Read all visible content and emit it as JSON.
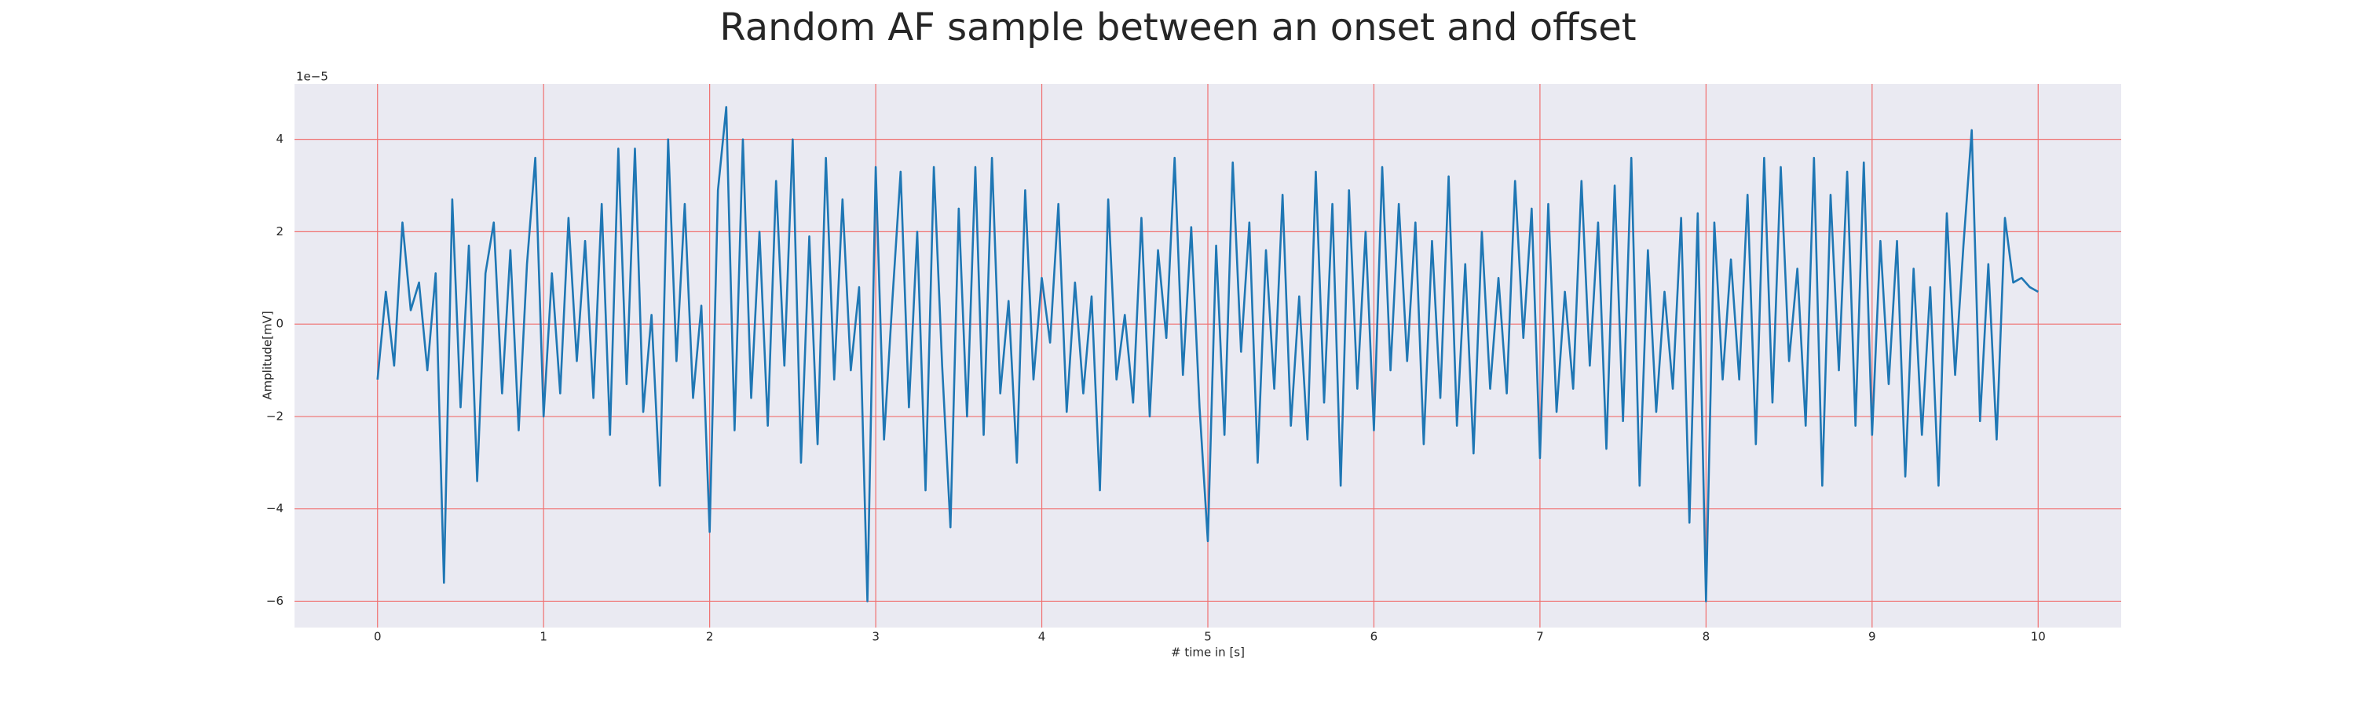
{
  "chart_data": {
    "type": "line",
    "title": "Random AF sample between an onset and offset",
    "xlabel": "# time in [s]",
    "ylabel": "Amplitude[mV]",
    "y_offset_label": "1e−5",
    "color": "#1f77b4",
    "grid": true,
    "xlim": [
      -0.5,
      10.5
    ],
    "ylim": [
      -6.57,
      5.2
    ],
    "xticks": [
      0,
      1,
      2,
      3,
      4,
      5,
      6,
      7,
      8,
      9,
      10
    ],
    "yticks": [
      {
        "value": -6,
        "label": "−6"
      },
      {
        "value": -4,
        "label": "−4"
      },
      {
        "value": -2,
        "label": "−2"
      },
      0,
      2,
      4
    ],
    "x": [
      0,
      0.05,
      0.1,
      0.15,
      0.2,
      0.25,
      0.3,
      0.35,
      0.4,
      0.45,
      0.5,
      0.55,
      0.6,
      0.65,
      0.7,
      0.75,
      0.8,
      0.85,
      0.9,
      0.95,
      1,
      1.05,
      1.1,
      1.15,
      1.2,
      1.25,
      1.3,
      1.35,
      1.4,
      1.45,
      1.5,
      1.55,
      1.6,
      1.65,
      1.7,
      1.75,
      1.8,
      1.85,
      1.9,
      1.95,
      2,
      2.05,
      2.1,
      2.15,
      2.2,
      2.25,
      2.3,
      2.35,
      2.4,
      2.45,
      2.5,
      2.55,
      2.6,
      2.65,
      2.7,
      2.75,
      2.8,
      2.85,
      2.9,
      2.95,
      3,
      3.05,
      3.1,
      3.15,
      3.2,
      3.25,
      3.3,
      3.35,
      3.4,
      3.45,
      3.5,
      3.55,
      3.6,
      3.65,
      3.7,
      3.75,
      3.8,
      3.85,
      3.9,
      3.95,
      4,
      4.05,
      4.1,
      4.15,
      4.2,
      4.25,
      4.3,
      4.35,
      4.4,
      4.45,
      4.5,
      4.55,
      4.6,
      4.65,
      4.7,
      4.75,
      4.8,
      4.85,
      4.9,
      4.95,
      5,
      5.05,
      5.1,
      5.15,
      5.2,
      5.25,
      5.3,
      5.35,
      5.4,
      5.45,
      5.5,
      5.55,
      5.6,
      5.65,
      5.7,
      5.75,
      5.8,
      5.85,
      5.9,
      5.95,
      6,
      6.05,
      6.1,
      6.15,
      6.2,
      6.25,
      6.3,
      6.35,
      6.4,
      6.45,
      6.5,
      6.55,
      6.6,
      6.65,
      6.7,
      6.75,
      6.8,
      6.85,
      6.9,
      6.95,
      7,
      7.05,
      7.1,
      7.15,
      7.2,
      7.25,
      7.3,
      7.35,
      7.4,
      7.45,
      7.5,
      7.55,
      7.6,
      7.65,
      7.7,
      7.75,
      7.8,
      7.85,
      7.9,
      7.95,
      8,
      8.05,
      8.1,
      8.15,
      8.2,
      8.25,
      8.3,
      8.35,
      8.4,
      8.45,
      8.5,
      8.55,
      8.6,
      8.65,
      8.7,
      8.75,
      8.8,
      8.85,
      8.9,
      8.95,
      9,
      9.05,
      9.1,
      9.15,
      9.2,
      9.25,
      9.3,
      9.35,
      9.4,
      9.45,
      9.5,
      9.55,
      9.6,
      9.65,
      9.7,
      9.75,
      9.8,
      9.85,
      9.9,
      9.95,
      10
    ],
    "values": [
      -1.2,
      0.7,
      -0.9,
      2.2,
      0.3,
      0.9,
      -1.0,
      1.1,
      -5.6,
      2.7,
      -1.8,
      1.7,
      -3.4,
      1.1,
      2.2,
      -1.5,
      1.6,
      -2.3,
      1.3,
      3.6,
      -2.0,
      1.1,
      -1.5,
      2.3,
      -0.8,
      1.8,
      -1.6,
      2.6,
      -2.4,
      3.8,
      -1.3,
      3.8,
      -1.9,
      0.2,
      -3.5,
      4.0,
      -0.8,
      2.6,
      -1.6,
      0.4,
      -4.5,
      2.9,
      4.7,
      -2.3,
      4.0,
      -1.6,
      2.0,
      -2.2,
      3.1,
      -0.9,
      4.0,
      -3.0,
      1.9,
      -2.6,
      3.6,
      -1.2,
      2.7,
      -1.0,
      0.8,
      -6.0,
      3.4,
      -2.5,
      0.5,
      3.3,
      -1.8,
      2.0,
      -3.6,
      3.4,
      -0.9,
      -4.4,
      2.5,
      -2.0,
      3.4,
      -2.4,
      3.6,
      -1.5,
      0.5,
      -3.0,
      2.9,
      -1.2,
      1.0,
      -0.4,
      2.6,
      -1.9,
      0.9,
      -1.5,
      0.6,
      -3.6,
      2.7,
      -1.2,
      0.2,
      -1.7,
      2.3,
      -2.0,
      1.6,
      -0.3,
      3.6,
      -1.1,
      2.1,
      -1.8,
      -4.7,
      1.7,
      -2.4,
      3.5,
      -0.6,
      2.2,
      -3.0,
      1.6,
      -1.4,
      2.8,
      -2.2,
      0.6,
      -2.5,
      3.3,
      -1.7,
      2.6,
      -3.5,
      2.9,
      -1.4,
      2.0,
      -2.3,
      3.4,
      -1.0,
      2.6,
      -0.8,
      2.2,
      -2.6,
      1.8,
      -1.6,
      3.2,
      -2.2,
      1.3,
      -2.8,
      2.0,
      -1.4,
      1.0,
      -1.5,
      3.1,
      -0.3,
      2.5,
      -2.9,
      2.6,
      -1.9,
      0.7,
      -1.4,
      3.1,
      -0.9,
      2.2,
      -2.7,
      3.0,
      -2.1,
      3.6,
      -3.5,
      1.6,
      -1.9,
      0.7,
      -1.4,
      2.3,
      -4.3,
      2.4,
      -6.0,
      2.2,
      -1.2,
      1.4,
      -1.2,
      2.8,
      -2.6,
      3.6,
      -1.7,
      3.4,
      -0.8,
      1.2,
      -2.2,
      3.6,
      -3.5,
      2.8,
      -1.0,
      3.3,
      -2.2,
      3.5,
      -2.4,
      1.8,
      -1.3,
      1.8,
      -3.3,
      1.2,
      -2.4,
      0.8,
      -3.5,
      2.4,
      -1.1,
      1.7,
      4.2,
      -2.1,
      1.3,
      -2.5,
      2.3,
      0.9,
      1.0,
      0.8,
      0.7
    ]
  }
}
